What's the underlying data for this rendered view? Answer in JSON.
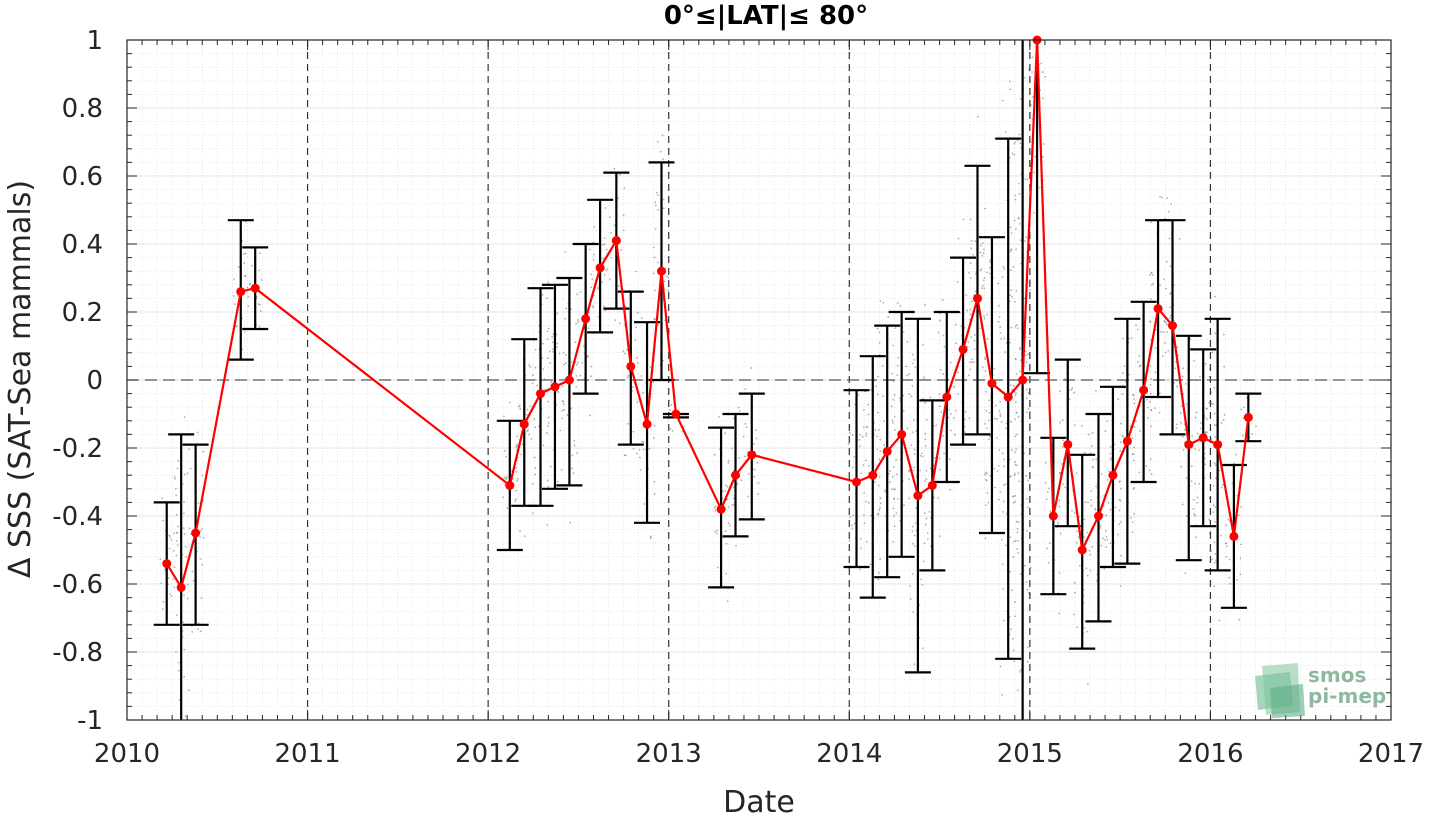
{
  "chart_data": {
    "type": "line",
    "title": "0°≤|LAT|≤ 80°",
    "xlabel": "Date",
    "ylabel": "Δ SSS (SAT-Sea mammals)",
    "xlim": [
      2010,
      2017
    ],
    "ylim": [
      -1,
      1
    ],
    "x_ticks": [
      2010,
      2011,
      2012,
      2013,
      2014,
      2015,
      2016,
      2017
    ],
    "x_tick_labels": [
      "2010",
      "2011",
      "2012",
      "2013",
      "2014",
      "2015",
      "2016",
      "2017"
    ],
    "y_ticks": [
      -1,
      -0.8,
      -0.6,
      -0.4,
      -0.2,
      0,
      0.2,
      0.4,
      0.6,
      0.8,
      1
    ],
    "y_tick_labels": [
      "-1",
      "-0.8",
      "-0.6",
      "-0.4",
      "-0.2",
      "0",
      "0.2",
      "0.4",
      "0.6",
      "0.8",
      "1"
    ],
    "vertical_dashed_lines": [
      2011,
      2012,
      2013,
      2014,
      2015,
      2016
    ],
    "zero_line": 0,
    "grid": true,
    "colors": {
      "mean_line": "#ff0000",
      "error_bars": "#000000",
      "scatter": "#7a7a7a",
      "logo": "#8fb8a0"
    },
    "series": [
      {
        "values": [
          {
            "x": 2010.22,
            "y": -0.54,
            "low": -0.72,
            "high": -0.36
          },
          {
            "x": 2010.3,
            "y": -0.61,
            "low": -1.0,
            "high": -0.16
          },
          {
            "x": 2010.38,
            "y": -0.45,
            "low": -0.72,
            "high": -0.19
          },
          {
            "x": 2010.63,
            "y": 0.26,
            "low": 0.06,
            "high": 0.47
          },
          {
            "x": 2010.71,
            "y": 0.27,
            "low": 0.15,
            "high": 0.39
          },
          {
            "x": 2012.12,
            "y": -0.31,
            "low": -0.5,
            "high": -0.12
          },
          {
            "x": 2012.2,
            "y": -0.13,
            "low": -0.37,
            "high": 0.12
          },
          {
            "x": 2012.29,
            "y": -0.04,
            "low": -0.37,
            "high": 0.27
          },
          {
            "x": 2012.37,
            "y": -0.02,
            "low": -0.32,
            "high": 0.28
          },
          {
            "x": 2012.45,
            "y": 0.0,
            "low": -0.31,
            "high": 0.3
          },
          {
            "x": 2012.54,
            "y": 0.18,
            "low": -0.04,
            "high": 0.4
          },
          {
            "x": 2012.62,
            "y": 0.33,
            "low": 0.14,
            "high": 0.53
          },
          {
            "x": 2012.71,
            "y": 0.41,
            "low": 0.21,
            "high": 0.61
          },
          {
            "x": 2012.79,
            "y": 0.04,
            "low": -0.19,
            "high": 0.26
          },
          {
            "x": 2012.88,
            "y": -0.13,
            "low": -0.42,
            "high": 0.17
          },
          {
            "x": 2012.96,
            "y": 0.32,
            "low": 0.0,
            "high": 0.64
          },
          {
            "x": 2013.04,
            "y": -0.1,
            "low": -0.11,
            "high": -0.1
          },
          {
            "x": 2013.29,
            "y": -0.38,
            "low": -0.61,
            "high": -0.14
          },
          {
            "x": 2013.37,
            "y": -0.28,
            "low": -0.46,
            "high": -0.1
          },
          {
            "x": 2013.46,
            "y": -0.22,
            "low": -0.41,
            "high": -0.04
          },
          {
            "x": 2014.04,
            "y": -0.3,
            "low": -0.55,
            "high": -0.03
          },
          {
            "x": 2014.13,
            "y": -0.28,
            "low": -0.64,
            "high": 0.07
          },
          {
            "x": 2014.21,
            "y": -0.21,
            "low": -0.58,
            "high": 0.16
          },
          {
            "x": 2014.29,
            "y": -0.16,
            "low": -0.52,
            "high": 0.2
          },
          {
            "x": 2014.38,
            "y": -0.34,
            "low": -0.86,
            "high": 0.18
          },
          {
            "x": 2014.46,
            "y": -0.31,
            "low": -0.56,
            "high": -0.06
          },
          {
            "x": 2014.54,
            "y": -0.05,
            "low": -0.3,
            "high": 0.2
          },
          {
            "x": 2014.63,
            "y": 0.09,
            "low": -0.19,
            "high": 0.36
          },
          {
            "x": 2014.71,
            "y": 0.24,
            "low": -0.16,
            "high": 0.63
          },
          {
            "x": 2014.79,
            "y": -0.01,
            "low": -0.45,
            "high": 0.42
          },
          {
            "x": 2014.88,
            "y": -0.05,
            "low": -0.82,
            "high": 0.71
          },
          {
            "x": 2014.96,
            "y": 0.0,
            "low": -1.0,
            "high": 1.0
          },
          {
            "x": 2015.04,
            "y": 1.0,
            "low": 0.02,
            "high": 1.0
          },
          {
            "x": 2015.13,
            "y": -0.4,
            "low": -0.63,
            "high": -0.17
          },
          {
            "x": 2015.21,
            "y": -0.19,
            "low": -0.43,
            "high": 0.06
          },
          {
            "x": 2015.29,
            "y": -0.5,
            "low": -0.79,
            "high": -0.22
          },
          {
            "x": 2015.38,
            "y": -0.4,
            "low": -0.71,
            "high": -0.1
          },
          {
            "x": 2015.46,
            "y": -0.28,
            "low": -0.55,
            "high": -0.02
          },
          {
            "x": 2015.54,
            "y": -0.18,
            "low": -0.54,
            "high": 0.18
          },
          {
            "x": 2015.63,
            "y": -0.03,
            "low": -0.3,
            "high": 0.23
          },
          {
            "x": 2015.71,
            "y": 0.21,
            "low": -0.05,
            "high": 0.47
          },
          {
            "x": 2015.79,
            "y": 0.16,
            "low": -0.16,
            "high": 0.47
          },
          {
            "x": 2015.88,
            "y": -0.19,
            "low": -0.53,
            "high": 0.13
          },
          {
            "x": 2015.96,
            "y": -0.17,
            "low": -0.43,
            "high": 0.09
          },
          {
            "x": 2016.04,
            "y": -0.19,
            "low": -0.56,
            "high": 0.18
          },
          {
            "x": 2016.13,
            "y": -0.46,
            "low": -0.67,
            "high": -0.25
          },
          {
            "x": 2016.21,
            "y": -0.11,
            "low": -0.18,
            "high": -0.04
          }
        ]
      }
    ]
  },
  "logo": {
    "line1": "smos",
    "line2": "pi-mep"
  }
}
